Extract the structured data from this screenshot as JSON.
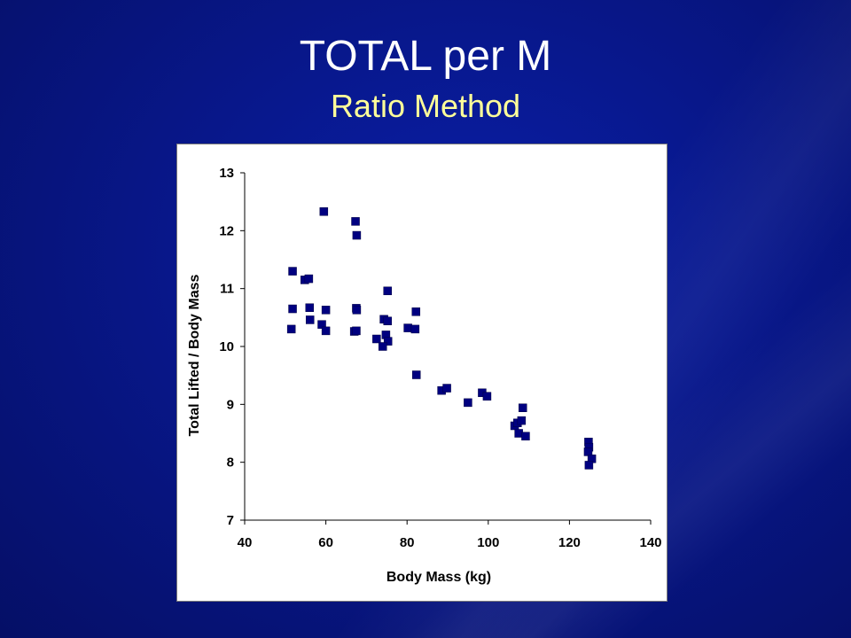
{
  "slide": {
    "title": "TOTAL per M",
    "subtitle": "Ratio Method"
  },
  "colors": {
    "background": "#08178a",
    "title": "#ffffff",
    "subtitle": "#ffff99",
    "marker": "#000080"
  },
  "chart_data": {
    "type": "scatter",
    "xlabel": "Body Mass (kg)",
    "ylabel": "Total Lifted / Body Mass",
    "xlim": [
      40,
      140
    ],
    "ylim": [
      7,
      13
    ],
    "xticks": [
      40,
      60,
      80,
      100,
      120,
      140
    ],
    "yticks": [
      7,
      8,
      9,
      10,
      11,
      12,
      13
    ],
    "grid": false,
    "legend": "none",
    "marker": "square",
    "points": [
      [
        59.5,
        12.33
      ],
      [
        67.3,
        12.16
      ],
      [
        67.6,
        11.92
      ],
      [
        51.8,
        11.3
      ],
      [
        54.8,
        11.15
      ],
      [
        55.8,
        11.17
      ],
      [
        75.2,
        10.96
      ],
      [
        51.8,
        10.65
      ],
      [
        56.0,
        10.67
      ],
      [
        60.0,
        10.63
      ],
      [
        67.5,
        10.66
      ],
      [
        67.6,
        10.63
      ],
      [
        82.2,
        10.6
      ],
      [
        56.1,
        10.46
      ],
      [
        74.3,
        10.47
      ],
      [
        75.2,
        10.44
      ],
      [
        59.0,
        10.38
      ],
      [
        51.5,
        10.3
      ],
      [
        60.0,
        10.27
      ],
      [
        67.0,
        10.26
      ],
      [
        67.5,
        10.27
      ],
      [
        80.2,
        10.32
      ],
      [
        82.0,
        10.3
      ],
      [
        72.5,
        10.13
      ],
      [
        74.8,
        10.2
      ],
      [
        75.3,
        10.09
      ],
      [
        74.0,
        10.0
      ],
      [
        82.3,
        9.51
      ],
      [
        88.5,
        9.24
      ],
      [
        89.8,
        9.28
      ],
      [
        95.0,
        9.03
      ],
      [
        98.5,
        9.2
      ],
      [
        99.7,
        9.14
      ],
      [
        108.5,
        8.94
      ],
      [
        106.5,
        8.63
      ],
      [
        107.2,
        8.68
      ],
      [
        108.2,
        8.72
      ],
      [
        107.5,
        8.5
      ],
      [
        109.2,
        8.45
      ],
      [
        124.7,
        8.35
      ],
      [
        124.8,
        8.26
      ],
      [
        124.6,
        8.18
      ],
      [
        125.5,
        8.06
      ],
      [
        124.8,
        7.95
      ]
    ]
  }
}
